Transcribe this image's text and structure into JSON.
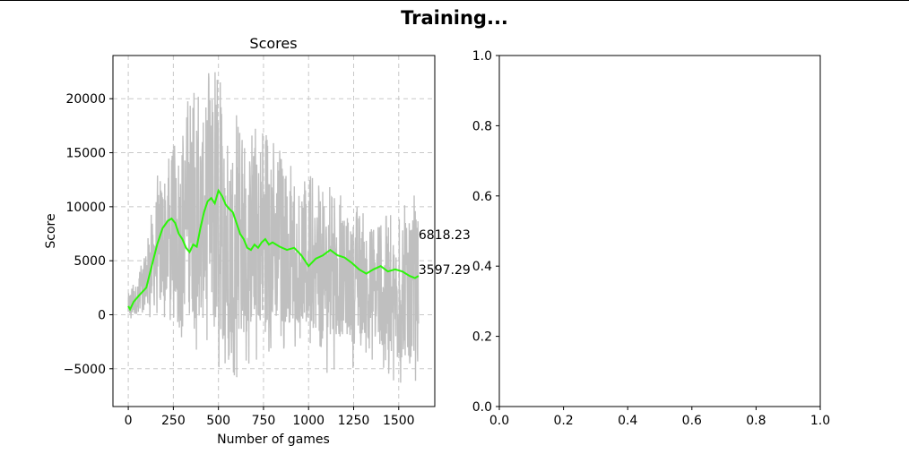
{
  "figure": {
    "suptitle": "Training..."
  },
  "colors": {
    "raw": "#bfbfbf",
    "avg": "#2cf50a",
    "grid": "#c8c8c8",
    "axes": "#000000"
  },
  "chart_data": [
    {
      "type": "line",
      "title": "Scores",
      "xlabel": "Number of games",
      "ylabel": "Score",
      "xlim": [
        -85,
        1700
      ],
      "ylim": [
        -8500,
        24000
      ],
      "xticks": [
        0,
        250,
        500,
        750,
        1000,
        1250,
        1500
      ],
      "xtick_labels": [
        "0",
        "250",
        "500",
        "750",
        "1000",
        "1250",
        "1500"
      ],
      "yticks": [
        -5000,
        0,
        5000,
        10000,
        15000,
        20000
      ],
      "ytick_labels": [
        "−5000",
        "0",
        "5000",
        "10000",
        "15000",
        "20000"
      ],
      "grid": true,
      "series": [
        {
          "kind": "raw",
          "x_range": [
            0,
            1610
          ],
          "envelope": [
            [
              0,
              -1000,
              2500
            ],
            [
              50,
              -500,
              3500
            ],
            [
              100,
              0,
              7000
            ],
            [
              150,
              -1500,
              12000
            ],
            [
              200,
              -2000,
              16000
            ],
            [
              250,
              -1000,
              16500
            ],
            [
              300,
              -2500,
              19000
            ],
            [
              350,
              -4000,
              21000
            ],
            [
              400,
              -4500,
              21500
            ],
            [
              450,
              -5000,
              22500
            ],
            [
              500,
              -6000,
              22800
            ],
            [
              550,
              -6500,
              21000
            ],
            [
              600,
              -6000,
              19500
            ],
            [
              650,
              -5000,
              16000
            ],
            [
              700,
              -4500,
              17500
            ],
            [
              750,
              -4000,
              18000
            ],
            [
              800,
              -4000,
              17000
            ],
            [
              850,
              -3500,
              15000
            ],
            [
              900,
              -3500,
              14500
            ],
            [
              950,
              -3000,
              13000
            ],
            [
              1000,
              -3500,
              13500
            ],
            [
              1050,
              -4000,
              12500
            ],
            [
              1100,
              -5500,
              12000
            ],
            [
              1150,
              -5000,
              11500
            ],
            [
              1200,
              -4000,
              11000
            ],
            [
              1250,
              -5000,
              10000
            ],
            [
              1300,
              -4000,
              10500
            ],
            [
              1350,
              -4500,
              9500
            ],
            [
              1400,
              -5000,
              10000
            ],
            [
              1450,
              -6500,
              9500
            ],
            [
              1500,
              -7000,
              9000
            ],
            [
              1550,
              -6500,
              11000
            ],
            [
              1610,
              -6000,
              12000
            ]
          ]
        },
        {
          "kind": "moving_average",
          "x": [
            0,
            10,
            30,
            60,
            100,
            130,
            160,
            190,
            220,
            240,
            260,
            280,
            300,
            320,
            340,
            360,
            380,
            400,
            420,
            440,
            460,
            480,
            500,
            520,
            540,
            560,
            580,
            600,
            620,
            640,
            660,
            680,
            700,
            720,
            740,
            760,
            780,
            800,
            840,
            880,
            920,
            960,
            1000,
            1040,
            1080,
            1120,
            1160,
            1200,
            1240,
            1280,
            1320,
            1360,
            1400,
            1440,
            1480,
            1520,
            1560,
            1590,
            1610
          ],
          "y": [
            800,
            500,
            1200,
            1800,
            2500,
            4500,
            6500,
            8000,
            8700,
            8900,
            8500,
            7500,
            7000,
            6200,
            5800,
            6500,
            6300,
            8000,
            9500,
            10500,
            10800,
            10300,
            11500,
            11000,
            10200,
            9800,
            9500,
            8500,
            7500,
            7000,
            6200,
            6000,
            6500,
            6200,
            6700,
            7000,
            6500,
            6700,
            6300,
            6000,
            6200,
            5500,
            4500,
            5200,
            5500,
            6000,
            5500,
            5300,
            4800,
            4200,
            3800,
            4200,
            4500,
            4000,
            4200,
            4000,
            3600,
            3400,
            3600
          ]
        }
      ],
      "annotations": [
        {
          "text": "6818.23",
          "x": 1610,
          "y": 6818.23
        },
        {
          "text": "3597.29",
          "x": 1610,
          "y": 3597.29
        }
      ]
    },
    {
      "type": "line",
      "title": "",
      "xlim": [
        0,
        1
      ],
      "ylim": [
        0,
        1
      ],
      "xticks": [
        0,
        0.2,
        0.4,
        0.6,
        0.8,
        1
      ],
      "xtick_labels": [
        "0.0",
        "0.2",
        "0.4",
        "0.6",
        "0.8",
        "1.0"
      ],
      "yticks": [
        0,
        0.2,
        0.4,
        0.6,
        0.8,
        1
      ],
      "ytick_labels": [
        "0.0",
        "0.2",
        "0.4",
        "0.6",
        "0.8",
        "1.0"
      ],
      "grid": false,
      "series": []
    }
  ]
}
